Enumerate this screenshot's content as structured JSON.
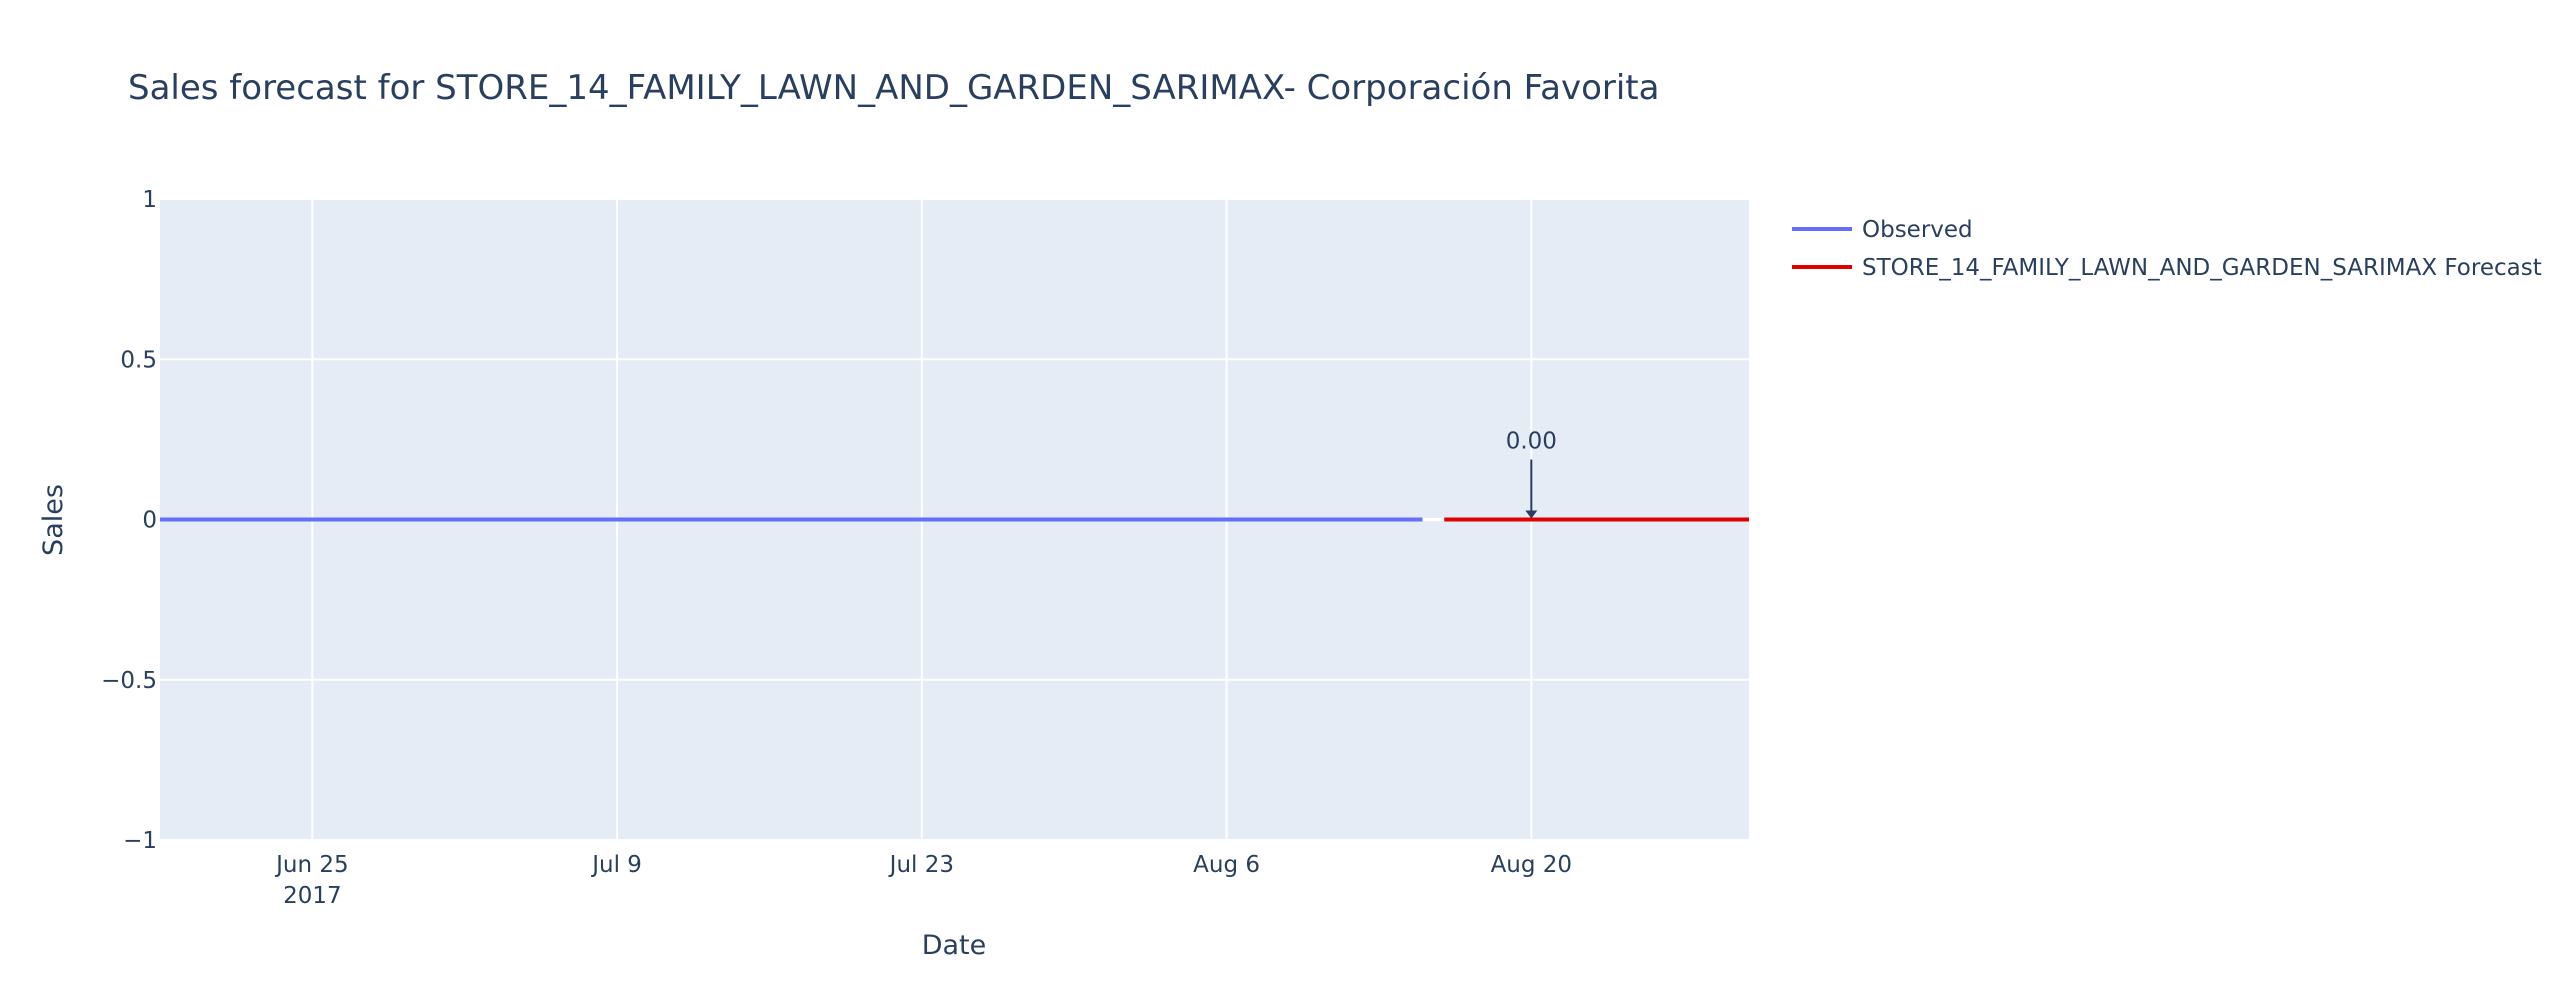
{
  "chart_data": {
    "type": "line",
    "title": "Sales forecast for STORE_14_FAMILY_LAWN_AND_GARDEN_SARIMAX- Corporación Favorita",
    "xlabel": "Date",
    "ylabel": "Sales",
    "xlim": [
      "2017-06-18",
      "2017-08-30"
    ],
    "ylim": [
      -1,
      1
    ],
    "x_ticks": [
      {
        "date": "2017-06-25",
        "label": "Jun 25",
        "sublabel": "2017"
      },
      {
        "date": "2017-07-09",
        "label": "Jul 9",
        "sublabel": ""
      },
      {
        "date": "2017-07-23",
        "label": "Jul 23",
        "sublabel": ""
      },
      {
        "date": "2017-08-06",
        "label": "Aug 6",
        "sublabel": ""
      },
      {
        "date": "2017-08-20",
        "label": "Aug 20",
        "sublabel": ""
      }
    ],
    "y_ticks": [
      {
        "value": 1,
        "label": "1"
      },
      {
        "value": 0.5,
        "label": "0.5"
      },
      {
        "value": 0,
        "label": "0"
      },
      {
        "value": -0.5,
        "label": "−0.5"
      },
      {
        "value": -1,
        "label": "−1"
      }
    ],
    "grid": true,
    "legend_position": "top-right",
    "series": [
      {
        "name": "Observed",
        "color": "#636efa",
        "x": [
          "2017-06-18",
          "2017-08-15"
        ],
        "y": [
          0,
          0
        ]
      },
      {
        "name": "STORE_14_FAMILY_LAWN_AND_GARDEN_SARIMAX Forecast",
        "color": "#e00000",
        "x": [
          "2017-08-16",
          "2017-08-30"
        ],
        "y": [
          0,
          0
        ]
      }
    ],
    "annotations": [
      {
        "text": "0.00",
        "x": "2017-08-20",
        "y": 0
      }
    ],
    "colors": {
      "plot_background": "#e5ecf6",
      "grid": "#ffffff",
      "text": "#2a3f5f"
    }
  }
}
